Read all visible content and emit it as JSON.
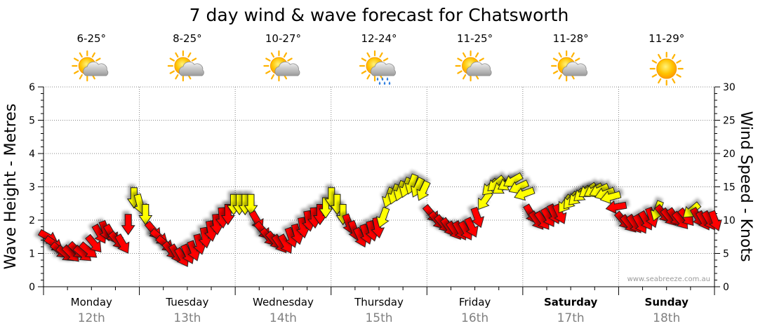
{
  "chart_data": {
    "type": "line",
    "title": "7 day wind & wave forecast for Chatsworth",
    "ylabel": "Wave Height - Metres",
    "y2label": "Wind Speed - Knots",
    "ylim": [
      0,
      6
    ],
    "y2lim": [
      0,
      30
    ],
    "yticks": [
      "0",
      "1",
      "2",
      "3",
      "4",
      "5",
      "6"
    ],
    "y2ticks": [
      "0",
      "5",
      "10",
      "15",
      "20",
      "25",
      "30"
    ],
    "watermark": "www.seabreeze.com.au",
    "days": [
      {
        "name": "Monday",
        "date": "12th",
        "temp": "6-25°",
        "icon": "partly-cloudy-icon",
        "bold": false
      },
      {
        "name": "Tuesday",
        "date": "13th",
        "temp": "8-25°",
        "icon": "partly-cloudy-icon",
        "bold": false
      },
      {
        "name": "Wednesday",
        "date": "14th",
        "temp": "10-27°",
        "icon": "partly-cloudy-icon",
        "bold": false
      },
      {
        "name": "Thursday",
        "date": "15th",
        "temp": "12-24°",
        "icon": "sun-cloud-rain-icon",
        "bold": false
      },
      {
        "name": "Friday",
        "date": "16th",
        "temp": "11-25°",
        "icon": "partly-cloudy-icon",
        "bold": false
      },
      {
        "name": "Saturday",
        "date": "17th",
        "temp": "11-28°",
        "icon": "partly-cloudy-icon",
        "bold": true
      },
      {
        "name": "Sunday",
        "date": "18th",
        "temp": "11-29°",
        "icon": "sunny-icon",
        "bold": true
      }
    ],
    "series": [
      {
        "name": "Wind (knots)",
        "unit": "knots",
        "axis": "right",
        "colors": {
          "calm": "#ff0000",
          "onshore": "#ffff00"
        },
        "points": [
          {
            "day": 0.0,
            "value": 7.5,
            "color": "calm",
            "dir": 120
          },
          {
            "day": 0.06,
            "value": 6.5,
            "color": "calm",
            "dir": 125
          },
          {
            "day": 0.12,
            "value": 5.5,
            "color": "calm",
            "dir": 130
          },
          {
            "day": 0.18,
            "value": 5.0,
            "color": "calm",
            "dir": 130
          },
          {
            "day": 0.24,
            "value": 5.0,
            "color": "calm",
            "dir": 135
          },
          {
            "day": 0.3,
            "value": 5.5,
            "color": "calm",
            "dir": 135
          },
          {
            "day": 0.36,
            "value": 5.0,
            "color": "calm",
            "dir": 130
          },
          {
            "day": 0.42,
            "value": 5.5,
            "color": "calm",
            "dir": 130
          },
          {
            "day": 0.48,
            "value": 6.5,
            "color": "calm",
            "dir": 140
          },
          {
            "day": 0.54,
            "value": 8.0,
            "color": "calm",
            "dir": 150
          },
          {
            "day": 0.6,
            "value": 8.5,
            "color": "calm",
            "dir": 160
          },
          {
            "day": 0.66,
            "value": 8.0,
            "color": "calm",
            "dir": 150
          },
          {
            "day": 0.72,
            "value": 7.0,
            "color": "calm",
            "dir": 140
          },
          {
            "day": 0.78,
            "value": 6.5,
            "color": "calm",
            "dir": 150
          },
          {
            "day": 0.84,
            "value": 9.5,
            "color": "calm",
            "dir": 180
          },
          {
            "day": 0.9,
            "value": 13.5,
            "color": "onshore",
            "dir": 180
          },
          {
            "day": 0.96,
            "value": 12.5,
            "color": "onshore",
            "dir": 165
          },
          {
            "day": 1.02,
            "value": 11.0,
            "color": "onshore",
            "dir": 180
          },
          {
            "day": 1.1,
            "value": 8.5,
            "color": "calm",
            "dir": 140
          },
          {
            "day": 1.16,
            "value": 7.5,
            "color": "calm",
            "dir": 130
          },
          {
            "day": 1.22,
            "value": 6.5,
            "color": "calm",
            "dir": 130
          },
          {
            "day": 1.28,
            "value": 5.5,
            "color": "calm",
            "dir": 140
          },
          {
            "day": 1.34,
            "value": 5.0,
            "color": "calm",
            "dir": 150
          },
          {
            "day": 1.4,
            "value": 4.5,
            "color": "calm",
            "dir": 150
          },
          {
            "day": 1.46,
            "value": 5.0,
            "color": "calm",
            "dir": 155
          },
          {
            "day": 1.52,
            "value": 5.5,
            "color": "calm",
            "dir": 160
          },
          {
            "day": 1.58,
            "value": 6.5,
            "color": "calm",
            "dir": 165
          },
          {
            "day": 1.64,
            "value": 7.5,
            "color": "calm",
            "dir": 170
          },
          {
            "day": 1.7,
            "value": 8.5,
            "color": "calm",
            "dir": 170
          },
          {
            "day": 1.76,
            "value": 9.5,
            "color": "calm",
            "dir": 175
          },
          {
            "day": 1.82,
            "value": 10.5,
            "color": "calm",
            "dir": 175
          },
          {
            "day": 1.88,
            "value": 11.0,
            "color": "calm",
            "dir": 180
          },
          {
            "day": 1.94,
            "value": 12.5,
            "color": "onshore",
            "dir": 180
          },
          {
            "day": 2.0,
            "value": 12.5,
            "color": "onshore",
            "dir": 180
          },
          {
            "day": 2.06,
            "value": 12.5,
            "color": "onshore",
            "dir": 180
          },
          {
            "day": 2.12,
            "value": 12.5,
            "color": "onshore",
            "dir": 180
          },
          {
            "day": 2.18,
            "value": 10.0,
            "color": "calm",
            "dir": 150
          },
          {
            "day": 2.24,
            "value": 8.5,
            "color": "calm",
            "dir": 140
          },
          {
            "day": 2.3,
            "value": 7.5,
            "color": "calm",
            "dir": 140
          },
          {
            "day": 2.36,
            "value": 7.0,
            "color": "calm",
            "dir": 140
          },
          {
            "day": 2.42,
            "value": 6.5,
            "color": "calm",
            "dir": 145
          },
          {
            "day": 2.48,
            "value": 6.5,
            "color": "calm",
            "dir": 150
          },
          {
            "day": 2.54,
            "value": 7.5,
            "color": "calm",
            "dir": 160
          },
          {
            "day": 2.6,
            "value": 8.0,
            "color": "calm",
            "dir": 165
          },
          {
            "day": 2.66,
            "value": 9.0,
            "color": "calm",
            "dir": 170
          },
          {
            "day": 2.72,
            "value": 10.0,
            "color": "calm",
            "dir": 170
          },
          {
            "day": 2.78,
            "value": 10.5,
            "color": "calm",
            "dir": 175
          },
          {
            "day": 2.84,
            "value": 11.0,
            "color": "calm",
            "dir": 180
          },
          {
            "day": 2.9,
            "value": 12.0,
            "color": "onshore",
            "dir": 180
          },
          {
            "day": 2.96,
            "value": 13.5,
            "color": "onshore",
            "dir": 180
          },
          {
            "day": 3.02,
            "value": 12.5,
            "color": "onshore",
            "dir": 180
          },
          {
            "day": 3.08,
            "value": 11.0,
            "color": "onshore",
            "dir": 180
          },
          {
            "day": 3.14,
            "value": 9.5,
            "color": "calm",
            "dir": 160
          },
          {
            "day": 3.2,
            "value": 8.5,
            "color": "calm",
            "dir": 160
          },
          {
            "day": 3.26,
            "value": 7.5,
            "color": "calm",
            "dir": 155
          },
          {
            "day": 3.32,
            "value": 8.0,
            "color": "calm",
            "dir": 160
          },
          {
            "day": 3.38,
            "value": 8.5,
            "color": "calm",
            "dir": 165
          },
          {
            "day": 3.44,
            "value": 9.0,
            "color": "calm",
            "dir": 170
          },
          {
            "day": 3.5,
            "value": 10.5,
            "color": "onshore",
            "dir": 200
          },
          {
            "day": 3.56,
            "value": 13.5,
            "color": "onshore",
            "dir": 200
          },
          {
            "day": 3.62,
            "value": 14.0,
            "color": "onshore",
            "dir": 200
          },
          {
            "day": 3.68,
            "value": 14.5,
            "color": "onshore",
            "dir": 200
          },
          {
            "day": 3.74,
            "value": 15.0,
            "color": "onshore",
            "dir": 200
          },
          {
            "day": 3.8,
            "value": 15.5,
            "color": "onshore",
            "dir": 200
          },
          {
            "day": 3.86,
            "value": 15.0,
            "color": "onshore",
            "dir": 205
          },
          {
            "day": 3.92,
            "value": 14.5,
            "color": "onshore",
            "dir": 205
          },
          {
            "day": 4.0,
            "value": 11.0,
            "color": "calm",
            "dir": 140
          },
          {
            "day": 4.06,
            "value": 10.0,
            "color": "calm",
            "dir": 140
          },
          {
            "day": 4.12,
            "value": 9.5,
            "color": "calm",
            "dir": 140
          },
          {
            "day": 4.18,
            "value": 9.0,
            "color": "calm",
            "dir": 145
          },
          {
            "day": 4.24,
            "value": 8.5,
            "color": "calm",
            "dir": 145
          },
          {
            "day": 4.3,
            "value": 8.5,
            "color": "calm",
            "dir": 150
          },
          {
            "day": 4.36,
            "value": 8.5,
            "color": "calm",
            "dir": 150
          },
          {
            "day": 4.42,
            "value": 9.0,
            "color": "calm",
            "dir": 155
          },
          {
            "day": 4.48,
            "value": 10.5,
            "color": "calm",
            "dir": 160
          },
          {
            "day": 4.56,
            "value": 13.0,
            "color": "onshore",
            "dir": 215
          },
          {
            "day": 4.62,
            "value": 15.0,
            "color": "onshore",
            "dir": 225
          },
          {
            "day": 4.68,
            "value": 15.5,
            "color": "onshore",
            "dir": 230
          },
          {
            "day": 4.74,
            "value": 15.0,
            "color": "onshore",
            "dir": 235
          },
          {
            "day": 4.8,
            "value": 15.5,
            "color": "onshore",
            "dir": 240
          },
          {
            "day": 4.86,
            "value": 16.0,
            "color": "onshore",
            "dir": 240
          },
          {
            "day": 4.92,
            "value": 15.0,
            "color": "onshore",
            "dir": 245
          },
          {
            "day": 4.98,
            "value": 14.0,
            "color": "onshore",
            "dir": 250
          },
          {
            "day": 5.04,
            "value": 11.0,
            "color": "calm",
            "dir": 150
          },
          {
            "day": 5.1,
            "value": 10.0,
            "color": "calm",
            "dir": 145
          },
          {
            "day": 5.16,
            "value": 10.0,
            "color": "calm",
            "dir": 145
          },
          {
            "day": 5.22,
            "value": 10.5,
            "color": "calm",
            "dir": 150
          },
          {
            "day": 5.28,
            "value": 11.0,
            "color": "calm",
            "dir": 155
          },
          {
            "day": 5.34,
            "value": 11.0,
            "color": "calm",
            "dir": 155
          },
          {
            "day": 5.4,
            "value": 12.5,
            "color": "onshore",
            "dir": 215
          },
          {
            "day": 5.46,
            "value": 13.0,
            "color": "onshore",
            "dir": 220
          },
          {
            "day": 5.52,
            "value": 13.5,
            "color": "onshore",
            "dir": 225
          },
          {
            "day": 5.58,
            "value": 14.0,
            "color": "onshore",
            "dir": 230
          },
          {
            "day": 5.64,
            "value": 14.5,
            "color": "onshore",
            "dir": 235
          },
          {
            "day": 5.7,
            "value": 14.5,
            "color": "onshore",
            "dir": 240
          },
          {
            "day": 5.76,
            "value": 14.5,
            "color": "onshore",
            "dir": 245
          },
          {
            "day": 5.82,
            "value": 14.0,
            "color": "onshore",
            "dir": 250
          },
          {
            "day": 5.88,
            "value": 13.5,
            "color": "onshore",
            "dir": 255
          },
          {
            "day": 5.94,
            "value": 12.0,
            "color": "calm",
            "dir": 260
          },
          {
            "day": 6.0,
            "value": 10.0,
            "color": "calm",
            "dir": 140
          },
          {
            "day": 6.06,
            "value": 9.5,
            "color": "calm",
            "dir": 140
          },
          {
            "day": 6.12,
            "value": 9.5,
            "color": "calm",
            "dir": 145
          },
          {
            "day": 6.18,
            "value": 9.5,
            "color": "calm",
            "dir": 150
          },
          {
            "day": 6.24,
            "value": 10.0,
            "color": "calm",
            "dir": 150
          },
          {
            "day": 6.3,
            "value": 10.5,
            "color": "calm",
            "dir": 160
          },
          {
            "day": 6.36,
            "value": 11.5,
            "color": "onshore",
            "dir": 200
          },
          {
            "day": 6.42,
            "value": 11.0,
            "color": "calm",
            "dir": 140
          },
          {
            "day": 6.48,
            "value": 10.5,
            "color": "calm",
            "dir": 140
          },
          {
            "day": 6.54,
            "value": 10.5,
            "color": "calm",
            "dir": 145
          },
          {
            "day": 6.6,
            "value": 10.0,
            "color": "calm",
            "dir": 140
          },
          {
            "day": 6.66,
            "value": 10.5,
            "color": "calm",
            "dir": 140
          },
          {
            "day": 6.72,
            "value": 11.5,
            "color": "onshore",
            "dir": 230
          },
          {
            "day": 6.78,
            "value": 10.5,
            "color": "calm",
            "dir": 150
          },
          {
            "day": 6.84,
            "value": 10.0,
            "color": "calm",
            "dir": 150
          },
          {
            "day": 6.9,
            "value": 10.0,
            "color": "calm",
            "dir": 150
          },
          {
            "day": 6.96,
            "value": 10.0,
            "color": "calm",
            "dir": 160
          }
        ]
      }
    ]
  }
}
